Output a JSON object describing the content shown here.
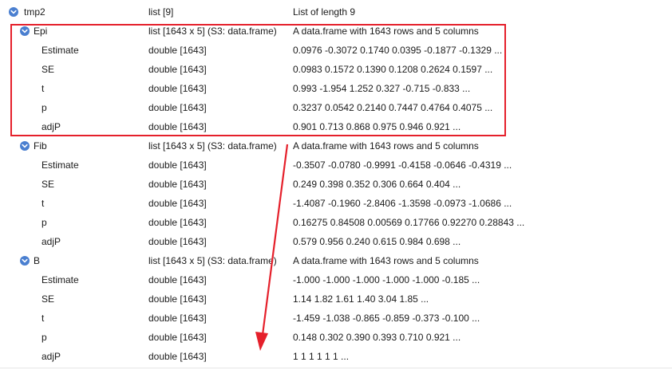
{
  "tree": {
    "root": {
      "name": "tmp2",
      "type": "list [9]",
      "value": "List of length 9"
    },
    "groups": [
      {
        "name": "Epi",
        "type": "list [1643 x 5] (S3: data.frame)",
        "value": "A data.frame with 1643 rows and 5 columns",
        "children": [
          {
            "name": "Estimate",
            "type": "double [1643]",
            "value": "0.0976 -0.3072 0.1740 0.0395 -0.1877 -0.1329 ..."
          },
          {
            "name": "SE",
            "type": "double [1643]",
            "value": "0.0983 0.1572 0.1390 0.1208 0.2624 0.1597 ..."
          },
          {
            "name": "t",
            "type": "double [1643]",
            "value": "0.993 -1.954 1.252 0.327 -0.715 -0.833 ..."
          },
          {
            "name": "p",
            "type": "double [1643]",
            "value": "0.3237 0.0542 0.2140 0.7447 0.4764 0.4075 ..."
          },
          {
            "name": "adjP",
            "type": "double [1643]",
            "value": "0.901 0.713 0.868 0.975 0.946 0.921 ..."
          }
        ]
      },
      {
        "name": "Fib",
        "type": "list [1643 x 5] (S3: data.frame)",
        "value": "A data.frame with 1643 rows and 5 columns",
        "children": [
          {
            "name": "Estimate",
            "type": "double [1643]",
            "value": "-0.3507 -0.0780 -0.9991 -0.4158 -0.0646 -0.4319 ..."
          },
          {
            "name": "SE",
            "type": "double [1643]",
            "value": "0.249 0.398 0.352 0.306 0.664 0.404 ..."
          },
          {
            "name": "t",
            "type": "double [1643]",
            "value": "-1.4087 -0.1960 -2.8406 -1.3598 -0.0973 -1.0686 ..."
          },
          {
            "name": "p",
            "type": "double [1643]",
            "value": "0.16275 0.84508 0.00569 0.17766 0.92270 0.28843 ..."
          },
          {
            "name": "adjP",
            "type": "double [1643]",
            "value": "0.579 0.956 0.240 0.615 0.984 0.698 ..."
          }
        ]
      },
      {
        "name": "B",
        "type": "list [1643 x 5] (S3: data.frame)",
        "value": "A data.frame with 1643 rows and 5 columns",
        "children": [
          {
            "name": "Estimate",
            "type": "double [1643]",
            "value": "-1.000 -1.000 -1.000 -1.000 -1.000 -0.185 ..."
          },
          {
            "name": "SE",
            "type": "double [1643]",
            "value": "1.14 1.82 1.61 1.40 3.04 1.85 ..."
          },
          {
            "name": "t",
            "type": "double [1643]",
            "value": "-1.459 -1.038 -0.865 -0.859 -0.373 -0.100 ..."
          },
          {
            "name": "p",
            "type": "double [1643]",
            "value": "0.148 0.302 0.390 0.393 0.710 0.921 ..."
          },
          {
            "name": "adjP",
            "type": "double [1643]",
            "value": "1 1 1 1 1 1 ..."
          }
        ]
      }
    ]
  },
  "colors": {
    "accent": "#4a7fd0",
    "annotation": "#e5202b"
  },
  "icons": {
    "expanded": "chevron-down-icon"
  }
}
